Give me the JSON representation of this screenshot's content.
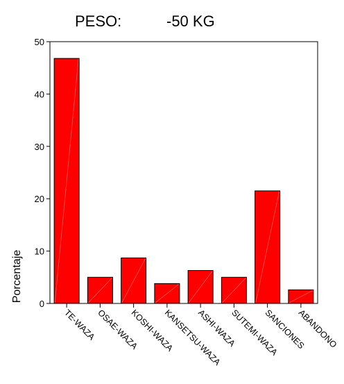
{
  "chart_data": {
    "type": "bar",
    "title_label": "PESO:",
    "title_value": "-50 KG",
    "xlabel": "",
    "ylabel": "Porcentaje",
    "ylim": [
      0,
      50
    ],
    "yticks": [
      0,
      10,
      20,
      30,
      40,
      50
    ],
    "grid": false,
    "categories": [
      "TE-WAZA",
      "OSAE-WAZA",
      "KOSHI-WAZA",
      "KANSETSU-WAZA",
      "ASHI-WAZA",
      "SUTEMI-WAZA",
      "SANCIONES",
      "ABANDONO"
    ],
    "values": [
      46.8,
      5.0,
      8.7,
      3.8,
      6.3,
      5.0,
      21.5,
      2.6
    ],
    "colors": {
      "bar": "#ff0000",
      "bar_stroke": "#000000",
      "sheen": "#ff8080"
    }
  }
}
